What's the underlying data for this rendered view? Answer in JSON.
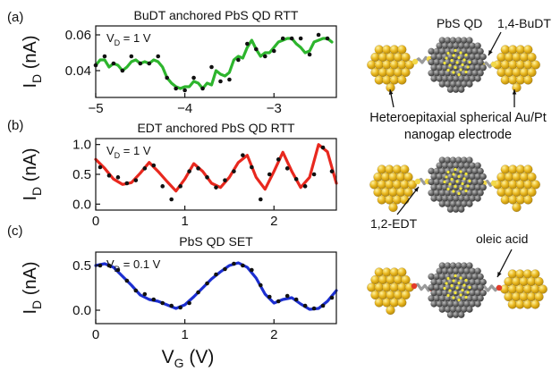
{
  "panel_labels": [
    "(a)",
    "(b)",
    "(c)"
  ],
  "shared_xlabel": "V_G (V)",
  "chart_data": [
    {
      "type": "line",
      "title": "BuDT anchored PbS QD RTT",
      "annotation": "V_D = 1 V",
      "ylabel": "I_D (nA)",
      "xlim": [
        -5.0,
        -2.3
      ],
      "ylim": [
        0.025,
        0.065
      ],
      "xticks": [
        -5,
        -4,
        -3
      ],
      "xtick_labels": [
        "−5",
        "−4",
        "−3"
      ],
      "yticks": [
        0.04,
        0.06
      ],
      "ytick_labels": [
        "0.04",
        "0.06"
      ],
      "series": [
        {
          "color": "#2db52d",
          "x": [
            -5.0,
            -4.95,
            -4.9,
            -4.85,
            -4.8,
            -4.75,
            -4.7,
            -4.65,
            -4.6,
            -4.55,
            -4.5,
            -4.45,
            -4.4,
            -4.35,
            -4.3,
            -4.25,
            -4.2,
            -4.15,
            -4.1,
            -4.05,
            -4.0,
            -3.95,
            -3.9,
            -3.85,
            -3.8,
            -3.75,
            -3.7,
            -3.65,
            -3.6,
            -3.55,
            -3.5,
            -3.45,
            -3.4,
            -3.35,
            -3.3,
            -3.25,
            -3.2,
            -3.15,
            -3.1,
            -3.05,
            -3.0,
            -2.95,
            -2.9,
            -2.85,
            -2.8,
            -2.75,
            -2.7,
            -2.65,
            -2.6,
            -2.55,
            -2.5,
            -2.45,
            -2.4,
            -2.35
          ],
          "y": [
            0.043,
            0.046,
            0.046,
            0.042,
            0.044,
            0.043,
            0.04,
            0.042,
            0.045,
            0.046,
            0.044,
            0.045,
            0.044,
            0.046,
            0.045,
            0.042,
            0.036,
            0.033,
            0.031,
            0.03,
            0.031,
            0.031,
            0.034,
            0.033,
            0.03,
            0.033,
            0.032,
            0.04,
            0.038,
            0.037,
            0.039,
            0.046,
            0.048,
            0.047,
            0.053,
            0.057,
            0.052,
            0.048,
            0.05,
            0.05,
            0.053,
            0.056,
            0.057,
            0.058,
            0.058,
            0.055,
            0.053,
            0.05,
            0.051,
            0.056,
            0.057,
            0.058,
            0.058,
            0.056
          ]
        },
        {
          "type": "scatter",
          "color": "#111111",
          "x": [
            -5.0,
            -4.9,
            -4.8,
            -4.7,
            -4.6,
            -4.5,
            -4.4,
            -4.3,
            -4.2,
            -4.1,
            -4.0,
            -3.9,
            -3.8,
            -3.7,
            -3.6,
            -3.5,
            -3.4,
            -3.3,
            -3.2,
            -3.1,
            -3.0,
            -2.9,
            -2.8,
            -2.7,
            -2.6,
            -2.5,
            -2.4
          ],
          "y": [
            0.043,
            0.048,
            0.044,
            0.04,
            0.048,
            0.044,
            0.044,
            0.048,
            0.036,
            0.03,
            0.029,
            0.036,
            0.03,
            0.042,
            0.034,
            0.035,
            0.046,
            0.055,
            0.052,
            0.048,
            0.051,
            0.058,
            0.058,
            0.058,
            0.049,
            0.06,
            0.058
          ]
        }
      ]
    },
    {
      "type": "line",
      "title": "EDT anchored PbS QD RTT",
      "annotation": "V_D = 1 V",
      "ylabel": "I_D (nA)",
      "xlim": [
        0.0,
        2.7
      ],
      "ylim": [
        -0.1,
        1.1
      ],
      "xticks": [
        0,
        1,
        2
      ],
      "xtick_labels": [
        "0",
        "1",
        "2"
      ],
      "yticks": [
        0.0,
        0.5,
        1.0
      ],
      "ytick_labels": [
        "0.0",
        "0.5",
        "1.0"
      ],
      "series": [
        {
          "color": "#e8281e",
          "x": [
            0.0,
            0.1,
            0.2,
            0.3,
            0.4,
            0.5,
            0.6,
            0.7,
            0.8,
            0.9,
            1.0,
            1.1,
            1.2,
            1.3,
            1.4,
            1.5,
            1.6,
            1.7,
            1.8,
            1.9,
            2.0,
            2.1,
            2.2,
            2.3,
            2.4,
            2.5,
            2.6,
            2.7
          ],
          "y": [
            0.75,
            0.6,
            0.42,
            0.33,
            0.36,
            0.52,
            0.7,
            0.55,
            0.38,
            0.22,
            0.42,
            0.68,
            0.55,
            0.35,
            0.28,
            0.45,
            0.7,
            0.82,
            0.45,
            0.25,
            0.55,
            0.87,
            0.55,
            0.28,
            0.45,
            1.0,
            0.88,
            0.35
          ]
        },
        {
          "type": "scatter",
          "color": "#111111",
          "x": [
            0.05,
            0.15,
            0.25,
            0.35,
            0.45,
            0.55,
            0.65,
            0.75,
            0.85,
            0.95,
            1.05,
            1.15,
            1.25,
            1.35,
            1.45,
            1.55,
            1.65,
            1.75,
            1.85,
            1.95,
            2.05,
            2.15,
            2.25,
            2.35,
            2.45,
            2.55,
            2.65
          ],
          "y": [
            0.62,
            0.48,
            0.45,
            0.35,
            0.4,
            0.6,
            0.65,
            0.3,
            0.08,
            0.3,
            0.55,
            0.6,
            0.45,
            0.28,
            0.4,
            0.55,
            0.82,
            0.62,
            0.08,
            0.5,
            0.75,
            0.6,
            0.42,
            0.3,
            0.5,
            0.95,
            0.55
          ]
        }
      ]
    },
    {
      "type": "line",
      "title": "PbS QD SET",
      "annotation": "V_D = 0.1 V",
      "ylabel": "I_D (nA)",
      "xlim": [
        0.0,
        2.7
      ],
      "ylim": [
        -0.15,
        0.65
      ],
      "xticks": [
        0,
        1,
        2
      ],
      "xtick_labels": [
        "0",
        "1",
        "2"
      ],
      "yticks": [
        0.0,
        0.5
      ],
      "ytick_labels": [
        "0.0",
        "0.5"
      ],
      "series": [
        {
          "color": "#1c2fd1",
          "x": [
            0.0,
            0.1,
            0.2,
            0.3,
            0.4,
            0.5,
            0.6,
            0.7,
            0.8,
            0.9,
            1.0,
            1.1,
            1.2,
            1.3,
            1.4,
            1.5,
            1.6,
            1.7,
            1.8,
            1.9,
            2.0,
            2.1,
            2.2,
            2.3,
            2.4,
            2.5,
            2.6,
            2.7
          ],
          "y": [
            0.5,
            0.52,
            0.48,
            0.38,
            0.28,
            0.17,
            0.12,
            0.1,
            0.06,
            0.02,
            0.06,
            0.15,
            0.25,
            0.35,
            0.43,
            0.5,
            0.53,
            0.48,
            0.36,
            0.18,
            0.08,
            0.12,
            0.14,
            0.07,
            0.01,
            0.02,
            0.1,
            0.22
          ]
        },
        {
          "type": "scatter",
          "color": "#111111",
          "x": [
            0.05,
            0.15,
            0.25,
            0.35,
            0.45,
            0.55,
            0.65,
            0.75,
            0.85,
            0.95,
            1.05,
            1.15,
            1.25,
            1.35,
            1.45,
            1.55,
            1.65,
            1.75,
            1.85,
            1.95,
            2.05,
            2.15,
            2.25,
            2.35,
            2.45,
            2.55,
            2.65
          ],
          "y": [
            0.5,
            0.5,
            0.45,
            0.33,
            0.22,
            0.18,
            0.12,
            0.08,
            0.05,
            0.03,
            0.08,
            0.2,
            0.3,
            0.4,
            0.46,
            0.52,
            0.5,
            0.45,
            0.28,
            0.15,
            0.1,
            0.16,
            0.12,
            0.05,
            0.02,
            0.05,
            0.14
          ]
        }
      ]
    }
  ],
  "illustration": {
    "labels": [
      "PbS QD",
      "1,4-BuDT",
      "Heteroepitaxial spherical Au/Pt",
      "nanogap electrode",
      "1,2-EDT",
      "oleic acid"
    ],
    "colors": {
      "gold": "#e8b61e",
      "gold_dark": "#b88a0c",
      "qd": "#6e6e6e",
      "qd_dark": "#3a3a3a",
      "dot": "#f2e63a",
      "ligand": "#9a9a9a",
      "ligand_end": "#e23b2a"
    }
  }
}
